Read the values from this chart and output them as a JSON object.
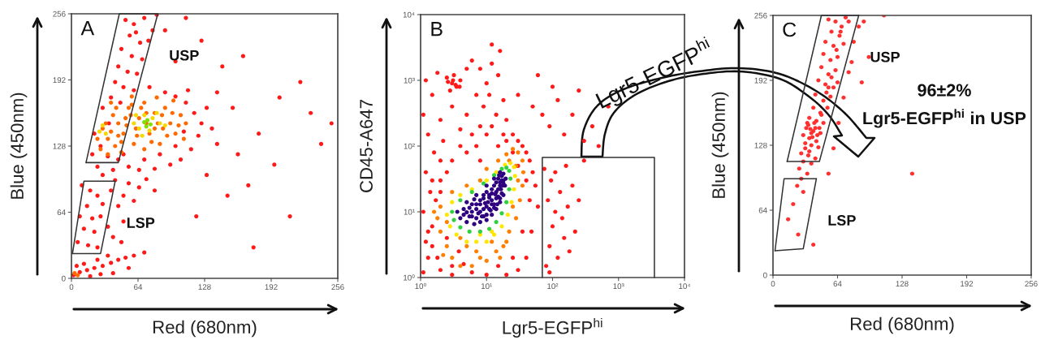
{
  "chart_data": [
    {
      "type": "scatter",
      "title": "A",
      "xlabel": "Red (680nm)",
      "ylabel": "Blue (450nm)",
      "xlim": [
        0,
        256
      ],
      "ylim": [
        0,
        256
      ],
      "xticks": [
        0,
        64,
        128,
        192,
        256
      ],
      "yticks": [
        0,
        64,
        128,
        192,
        256
      ],
      "marker": "circle",
      "series": [
        {
          "color": "#ff1a1a",
          "x": [
            52,
            60,
            70,
            78,
            56,
            66,
            74,
            48,
            58,
            68,
            45,
            54,
            63,
            42,
            50,
            60,
            38,
            47,
            30,
            36,
            22,
            28,
            20,
            35,
            45,
            25,
            40,
            82,
            62,
            90,
            100,
            110,
            118,
            125,
            122,
            115,
            105,
            95,
            80,
            65,
            55,
            130,
            135,
            140,
            112,
            75,
            85,
            100,
            108,
            50,
            70,
            30,
            42,
            55,
            65,
            50,
            38,
            72,
            60,
            45,
            80,
            10,
            18,
            25,
            15,
            30,
            8,
            20,
            28,
            12,
            22,
            35,
            6,
            16,
            25,
            40,
            50,
            48,
            2,
            8,
            15,
            22,
            30,
            38,
            45,
            52,
            12,
            25,
            35,
            5,
            18,
            40,
            60,
            70,
            28,
            55,
            90,
            110,
            125,
            145,
            165,
            200,
            230,
            180,
            160,
            195,
            240,
            210,
            150,
            130,
            170,
            120,
            175,
            250,
            100,
            140,
            155,
            220
          ],
          "values": [
            250,
            246,
            252,
            240,
            235,
            228,
            230,
            222,
            215,
            212,
            205,
            200,
            198,
            190,
            185,
            182,
            175,
            170,
            165,
            150,
            140,
            128,
            120,
            118,
            115,
            108,
            105,
            255,
            238,
            180,
            176,
            170,
            160,
            150,
            138,
            125,
            115,
            110,
            106,
            105,
            108,
            165,
            145,
            130,
            182,
            185,
            120,
            128,
            142,
            120,
            115,
            100,
            95,
            92,
            88,
            80,
            85,
            96,
            75,
            70,
            85,
            90,
            85,
            80,
            70,
            72,
            60,
            58,
            60,
            48,
            45,
            50,
            35,
            32,
            30,
            40,
            55,
            35,
            3,
            6,
            8,
            10,
            12,
            15,
            18,
            20,
            14,
            18,
            22,
            12,
            2,
            5,
            22,
            25,
            4,
            10,
            240,
            252,
            230,
            205,
            215,
            175,
            160,
            140,
            120,
            110,
            130,
            60,
            80,
            100,
            90,
            60,
            30,
            150,
            210,
            180,
            165,
            190
          ]
        },
        {
          "color": "#ff6a00",
          "x": [
            30,
            35,
            40,
            45,
            50,
            55,
            60,
            65,
            70,
            75,
            80,
            85,
            90,
            95,
            100,
            105,
            28,
            42,
            58,
            88,
            38,
            48,
            70,
            98,
            110,
            62,
            82,
            52,
            35,
            72,
            3,
            6,
            33,
            38,
            43,
            48,
            53,
            57,
            63,
            67,
            72,
            77,
            83,
            87,
            92,
            97,
            103,
            108,
            45,
            58,
            80,
            25
          ],
          "values": [
            145,
            135,
            158,
            150,
            140,
            165,
            130,
            155,
            170,
            140,
            160,
            130,
            165,
            150,
            140,
            158,
            125,
            128,
            176,
            145,
            170,
            122,
            125,
            172,
            150,
            145,
            175,
            155,
            120,
            160,
            5,
            3,
            150,
            142,
            165,
            132,
            148,
            158,
            138,
            165,
            150,
            132,
            150,
            158,
            138,
            160,
            148,
            135,
            138,
            168,
            145,
            135
          ]
        },
        {
          "color": "#f5d800",
          "x": [
            30,
            27,
            33,
            60,
            65,
            70,
            78,
            85,
            75,
            62,
            82,
            90,
            68
          ],
          "values": [
            148,
            142,
            140,
            150,
            145,
            158,
            155,
            150,
            143,
            158,
            160,
            148,
            138
          ]
        },
        {
          "color": "#7ee000",
          "x": [
            70,
            73,
            76,
            72
          ],
          "values": [
            151,
            153,
            149,
            147
          ]
        },
        {
          "type": "line",
          "name": "USP",
          "color": "#333333",
          "marker": "none",
          "x": [
            14,
            46,
            83
          ],
          "values": [
            112,
            256,
            256
          ]
        },
        {
          "type": "line",
          "color": "#333333",
          "marker": "none",
          "x": [
            14,
            45,
            83
          ],
          "values": [
            112,
            112,
            256
          ]
        },
        {
          "type": "line",
          "name": "LSP",
          "color": "#333333",
          "marker": "none",
          "x": [
            1,
            12,
            42
          ],
          "values": [
            24,
            94,
            94
          ]
        },
        {
          "type": "line",
          "color": "#333333",
          "marker": "none",
          "x": [
            1,
            28,
            42
          ],
          "values": [
            24,
            24,
            94
          ]
        }
      ]
    },
    {
      "type": "scatter",
      "title": "B",
      "xlabel": "Lgr5-EGFP$^{hi}$",
      "ylabel": "CD45-A647",
      "log": "xy",
      "xlim": [
        1,
        10000
      ],
      "ylim": [
        1,
        10000
      ],
      "xticks": [
        {
          "value": 1,
          "label": "10⁰"
        },
        {
          "value": 10,
          "label": "10¹"
        },
        {
          "value": 100,
          "label": "10²"
        },
        {
          "value": 1000,
          "label": "10³"
        },
        {
          "value": 10000,
          "label": "10⁴"
        }
      ],
      "yticks": [
        {
          "value": 1,
          "label": "10⁰"
        },
        {
          "value": 10,
          "label": "10¹"
        },
        {
          "value": 100,
          "label": "10²"
        },
        {
          "value": 1000,
          "label": "10³"
        },
        {
          "value": 10000,
          "label": "10⁴"
        }
      ],
      "marker": "circle",
      "annotations": [
        "Lgr5-EGFP$^{hi}$"
      ],
      "series": [
        {
          "color": "#ff1a1a",
          "x": [
            1.1,
            1.3,
            1.2,
            1.5,
            1.1,
            1.4,
            1.2,
            1.6,
            1.3,
            1.1,
            1.5,
            1.2,
            1.8,
            2.5,
            3,
            3.5,
            4,
            2.8,
            3.2,
            5,
            6,
            8,
            10,
            12,
            15,
            7,
            9,
            11,
            14,
            18,
            20,
            5,
            3,
            2,
            2.2,
            4,
            6,
            8,
            25,
            30,
            35,
            40,
            45,
            50,
            55,
            60,
            48,
            40,
            30,
            20,
            10,
            6,
            3,
            2,
            50,
            70,
            90,
            120,
            150,
            200,
            250,
            300,
            400,
            500,
            700,
            100,
            60,
            30,
            16,
            12,
            2,
            1.7,
            2.5,
            1.8,
            3.8,
            4.5,
            2.6,
            3.4,
            3.1,
            3.9,
            1.5,
            1.3,
            2,
            2.5,
            3,
            4,
            5,
            7,
            10,
            15,
            20,
            25,
            30,
            40,
            45,
            35,
            25,
            15,
            3,
            1.5,
            2,
            8,
            12,
            18,
            80,
            90,
            100,
            110,
            130,
            150,
            85,
            95,
            120,
            140,
            170,
            200,
            75,
            180,
            160,
            110,
            250,
            300,
            90,
            220
          ],
          "values": [
            1.2,
            2,
            3.5,
            6,
            10,
            20,
            40,
            80,
            150,
            300,
            600,
            1000,
            1300,
            1100,
            900,
            800,
            1000,
            700,
            1200,
            1500,
            2000,
            1500,
            900,
            1800,
            1200,
            600,
            400,
            600,
            300,
            500,
            250,
            300,
            400,
            250,
            120,
            180,
            150,
            200,
            150,
            120,
            100,
            80,
            60,
            40,
            25,
            12,
            5,
            2,
            1.3,
            1.1,
            1.1,
            1.2,
            1.1,
            1.3,
            400,
            300,
            200,
            500,
            150,
            300,
            700,
            120,
            200,
            100,
            400,
            800,
            1200,
            600,
            2800,
            3500,
            30,
            15,
            4,
            2,
            2.5,
            1.6,
            950,
            850,
            1000,
            800,
            3,
            5,
            20,
            40,
            60,
            100,
            80,
            100,
            150,
            100,
            120,
            80,
            50,
            30,
            15,
            5,
            2,
            1.5,
            1.5,
            30,
            60,
            60,
            200,
            150,
            1.5,
            3,
            6,
            10,
            20,
            4,
            15,
            30,
            2,
            8,
            12,
            25,
            45,
            2.5,
            50,
            40,
            15,
            60,
            1.2,
            5
          ]
        },
        {
          "color": "#ff7f00",
          "x": [
            2,
            2.5,
            3,
            4,
            6,
            8,
            10,
            14,
            18,
            22,
            28,
            32,
            35,
            36,
            35,
            30,
            25,
            20,
            15,
            10,
            8,
            5,
            3,
            2,
            1.8,
            2.5,
            4,
            12,
            25,
            30,
            28,
            22,
            5,
            7,
            16,
            20,
            1.6,
            2.2
          ],
          "values": [
            5,
            3,
            2,
            1.5,
            1.5,
            2,
            1.8,
            2.5,
            3,
            5,
            8,
            15,
            25,
            40,
            60,
            80,
            90,
            75,
            60,
            45,
            30,
            25,
            20,
            12,
            8,
            7,
            4,
            3.5,
            12,
            30,
            50,
            60,
            3,
            2.5,
            2,
            3.5,
            10,
            2.2
          ]
        },
        {
          "color": "#ffe600",
          "x": [
            2.5,
            2.8,
            3.5,
            5,
            7,
            10,
            13,
            17,
            21,
            24,
            26,
            27,
            26,
            23,
            19,
            14,
            10,
            6,
            4,
            3,
            12,
            8
          ],
          "values": [
            9,
            6,
            4.5,
            3.5,
            3.5,
            3.5,
            4.5,
            6,
            9,
            14,
            22,
            35,
            48,
            55,
            52,
            40,
            30,
            22,
            18,
            14,
            5,
            4.5
          ]
        },
        {
          "color": "#30d040",
          "x": [
            3,
            3.2,
            4,
            5.5,
            8,
            11,
            14,
            17,
            20,
            22,
            23,
            22,
            20,
            17,
            13,
            9,
            6,
            4
          ],
          "values": [
            10,
            7.5,
            5.8,
            5,
            5,
            5.5,
            7,
            9.5,
            14,
            22,
            32,
            42,
            47,
            45,
            36,
            27,
            20,
            15
          ]
        },
        {
          "color": "#2e0080",
          "x": [
            3.6,
            4,
            5,
            6.5,
            8,
            10,
            12,
            14,
            16,
            18,
            19,
            19.5,
            18,
            16,
            13,
            10,
            7,
            5,
            4.5,
            6,
            8,
            10,
            12,
            14,
            16,
            17,
            15,
            12,
            9,
            7,
            6,
            9,
            11,
            13,
            15,
            16.5,
            11,
            8,
            4.5,
            5.5,
            7,
            8.5,
            10,
            11.5,
            13,
            14.5,
            16,
            17,
            17.5,
            18,
            17,
            15.5,
            14,
            13,
            12,
            10,
            9,
            8,
            7,
            5.5,
            6,
            6.5,
            9,
            10.5,
            12,
            14,
            15,
            16,
            18,
            13.5,
            11,
            9.5,
            7.5,
            5
          ],
          "values": [
            10,
            8,
            7,
            6.5,
            7,
            7.5,
            9,
            11,
            14,
            18,
            25,
            32,
            38,
            40,
            32,
            25,
            18,
            14,
            11,
            10,
            10,
            12,
            15,
            20,
            25,
            30,
            32,
            22,
            16,
            13,
            8.5,
            8.5,
            11,
            13,
            17,
            22,
            18,
            13,
            9,
            8.5,
            8,
            8.5,
            9,
            10.5,
            11.5,
            13,
            16,
            19,
            25,
            30,
            35,
            36,
            28,
            25,
            19,
            20,
            18,
            15,
            11,
            11.5,
            13,
            15.5,
            11,
            14,
            13,
            16,
            22,
            28,
            27,
            18.5,
            16.5,
            13.5,
            9.5,
            9.8
          ]
        },
        {
          "type": "line",
          "color": "#333333",
          "marker": "none",
          "x": [
            70,
            70,
            3500,
            3500
          ],
          "values": [
            1,
            67,
            67,
            1
          ]
        }
      ]
    },
    {
      "type": "scatter",
      "title": "C",
      "xlabel": "Red (680nm)",
      "ylabel": "Blue (450nm)",
      "xlim": [
        0,
        256
      ],
      "ylim": [
        0,
        256
      ],
      "xticks": [
        0,
        64,
        128,
        192,
        256
      ],
      "yticks": [
        0,
        64,
        128,
        192,
        256
      ],
      "marker": "circle",
      "annotations": [
        "96±2%",
        "Lgr5-EGFP$^{hi}$ in USP"
      ],
      "series": [
        {
          "color": "#ff3030",
          "x": [
            55,
            62,
            68,
            72,
            58,
            66,
            52,
            60,
            70,
            50,
            57,
            64,
            48,
            55,
            62,
            45,
            52,
            60,
            42,
            50,
            57,
            40,
            47,
            54,
            36,
            43,
            50,
            33,
            40,
            47,
            30,
            36,
            43,
            38,
            32,
            45,
            28,
            35,
            42,
            30,
            38,
            26,
            34,
            28,
            24,
            30,
            20,
            15,
            25,
            40,
            60,
            65,
            70,
            75,
            80,
            85,
            90,
            95,
            88,
            110,
            138,
            55,
            35,
            38,
            42,
            34,
            39,
            44,
            37,
            41,
            46,
            32,
            36,
            48,
            53,
            58,
            63,
            67,
            75,
            78,
            64,
            55
          ],
          "values": [
            252,
            250,
            245,
            254,
            240,
            236,
            230,
            226,
            228,
            218,
            212,
            215,
            205,
            198,
            202,
            192,
            188,
            185,
            178,
            172,
            176,
            165,
            160,
            165,
            155,
            152,
            150,
            145,
            142,
            140,
            138,
            135,
            132,
            128,
            125,
            126,
            120,
            118,
            115,
            112,
            110,
            105,
            100,
            95,
            88,
            82,
            70,
            55,
            40,
            30,
            125,
            150,
            175,
            200,
            230,
            245,
            250,
            215,
            190,
            256,
            100,
            100,
            148,
            140,
            145,
            150,
            136,
            138,
            144,
            150,
            145,
            130,
            122,
            158,
            180,
            195,
            222,
            240,
            250,
            210,
            190,
            185
          ]
        },
        {
          "type": "line",
          "name": "USP",
          "color": "#333333",
          "marker": "none",
          "x": [
            14,
            48,
            85
          ],
          "values": [
            112,
            256,
            256
          ]
        },
        {
          "type": "line",
          "color": "#333333",
          "marker": "none",
          "x": [
            14,
            46,
            85
          ],
          "values": [
            112,
            112,
            256
          ]
        },
        {
          "type": "line",
          "name": "LSP",
          "color": "#333333",
          "marker": "none",
          "x": [
            2,
            11,
            43
          ],
          "values": [
            24,
            95,
            95
          ]
        },
        {
          "type": "line",
          "color": "#333333",
          "marker": "none",
          "x": [
            2,
            30,
            43
          ],
          "values": [
            24,
            26,
            95
          ]
        }
      ]
    }
  ]
}
